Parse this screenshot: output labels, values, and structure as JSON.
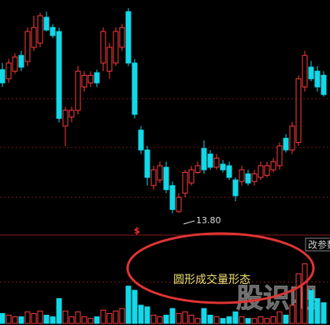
{
  "chart_data": [
    {
      "type": "candlestick",
      "ylim": [
        13.5,
        18
      ],
      "gridlines": [
        16.06,
        15.1,
        14.12
      ],
      "up_color": "#ff3c3c",
      "down_color": "#12d8e8",
      "ohlc": [
        [
          16.63,
          16.76,
          16.29,
          16.37
        ],
        [
          16.45,
          16.84,
          16.37,
          16.76
        ],
        [
          16.6,
          16.95,
          16.55,
          16.88
        ],
        [
          16.91,
          17.0,
          16.6,
          16.68
        ],
        [
          16.79,
          17.46,
          16.7,
          17.38
        ],
        [
          17.07,
          17.69,
          17.0,
          17.46
        ],
        [
          17.15,
          17.75,
          17.07,
          17.69
        ],
        [
          17.66,
          17.77,
          17.38,
          17.41
        ],
        [
          17.46,
          17.53,
          17.25,
          17.3
        ],
        [
          17.38,
          17.46,
          15.59,
          15.67
        ],
        [
          15.52,
          15.9,
          15.13,
          15.83
        ],
        [
          15.7,
          15.9,
          15.59,
          15.83
        ],
        [
          15.83,
          16.7,
          15.75,
          16.6
        ],
        [
          16.29,
          16.6,
          16.2,
          16.52
        ],
        [
          16.37,
          16.6,
          16.29,
          16.52
        ],
        [
          16.57,
          16.63,
          16.29,
          16.37
        ],
        [
          16.76,
          17.46,
          16.6,
          17.38
        ],
        [
          16.6,
          17.15,
          16.45,
          17.07
        ],
        [
          16.76,
          17.46,
          16.7,
          17.38
        ],
        [
          17.07,
          17.53,
          17.0,
          17.46
        ],
        [
          17.77,
          17.84,
          16.7,
          16.76
        ],
        [
          16.76,
          16.84,
          15.67,
          15.75
        ],
        [
          15.44,
          15.52,
          14.97,
          15.05
        ],
        [
          15.05,
          15.13,
          14.35,
          14.51
        ],
        [
          14.35,
          14.74,
          14.27,
          14.66
        ],
        [
          14.46,
          14.82,
          14.4,
          14.74
        ],
        [
          14.71,
          14.82,
          14.2,
          14.27
        ],
        [
          14.35,
          14.43,
          13.8,
          13.88
        ],
        [
          13.84,
          14.2,
          13.81,
          14.12
        ],
        [
          14.2,
          14.66,
          14.12,
          14.61
        ],
        [
          14.4,
          14.74,
          14.35,
          14.66
        ],
        [
          14.61,
          14.82,
          14.58,
          14.74
        ],
        [
          15.08,
          15.24,
          14.58,
          14.66
        ],
        [
          14.97,
          15.05,
          14.66,
          14.71
        ],
        [
          14.71,
          14.97,
          14.66,
          14.89
        ],
        [
          14.77,
          14.85,
          14.61,
          14.66
        ],
        [
          14.74,
          14.82,
          14.46,
          14.51
        ],
        [
          14.46,
          14.51,
          14.04,
          14.15
        ],
        [
          14.43,
          14.74,
          14.35,
          14.66
        ],
        [
          14.58,
          14.66,
          14.35,
          14.4
        ],
        [
          14.43,
          14.66,
          14.35,
          14.58
        ],
        [
          14.51,
          14.82,
          14.46,
          14.74
        ],
        [
          14.55,
          14.82,
          14.51,
          14.74
        ],
        [
          14.66,
          14.89,
          14.61,
          14.82
        ],
        [
          14.74,
          15.2,
          14.66,
          15.13
        ],
        [
          15.28,
          15.36,
          15.0,
          15.05
        ],
        [
          15.05,
          15.6,
          14.97,
          15.52
        ],
        [
          15.2,
          16.52,
          15.13,
          16.45
        ],
        [
          16.29,
          17.0,
          16.2,
          16.91
        ],
        [
          16.68,
          16.8,
          16.4,
          16.45
        ],
        [
          16.6,
          16.7,
          16.2,
          16.29
        ],
        [
          16.52,
          16.6,
          16.1,
          16.14
        ]
      ],
      "low_label": "13.80",
      "signal": "$"
    },
    {
      "type": "bar",
      "ylim": [
        0,
        100
      ],
      "gridlines": [
        50
      ],
      "values": [
        12,
        10,
        8,
        8,
        14,
        12,
        15,
        10,
        8,
        30,
        15,
        8,
        14,
        8,
        6,
        8,
        16,
        12,
        15,
        18,
        45,
        40,
        22,
        20,
        10,
        8,
        10,
        18,
        12,
        14,
        10,
        6,
        18,
        10,
        8,
        6,
        8,
        14,
        8,
        6,
        6,
        8,
        6,
        8,
        14,
        10,
        22,
        60,
        72,
        40,
        30,
        25
      ],
      "annotation": "圆形成交量形态",
      "button": "改参数",
      "watermark": "股识吧"
    }
  ]
}
